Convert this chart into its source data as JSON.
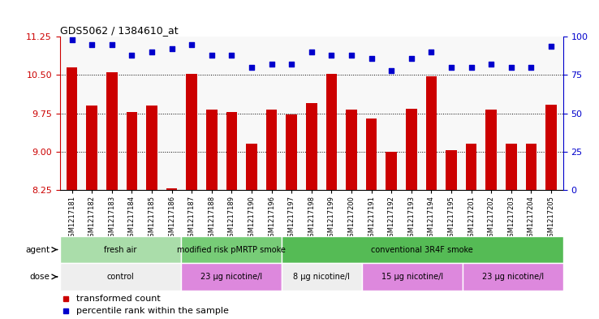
{
  "title": "GDS5062 / 1384610_at",
  "samples": [
    "GSM1217181",
    "GSM1217182",
    "GSM1217183",
    "GSM1217184",
    "GSM1217185",
    "GSM1217186",
    "GSM1217187",
    "GSM1217188",
    "GSM1217189",
    "GSM1217190",
    "GSM1217196",
    "GSM1217197",
    "GSM1217198",
    "GSM1217199",
    "GSM1217200",
    "GSM1217191",
    "GSM1217192",
    "GSM1217193",
    "GSM1217194",
    "GSM1217195",
    "GSM1217201",
    "GSM1217202",
    "GSM1217203",
    "GSM1217204",
    "GSM1217205"
  ],
  "bar_values": [
    10.65,
    9.9,
    10.55,
    9.77,
    9.9,
    8.28,
    10.52,
    9.82,
    9.77,
    9.15,
    9.82,
    9.73,
    9.95,
    10.52,
    9.82,
    9.65,
    9.0,
    9.83,
    10.48,
    9.02,
    9.15,
    9.82,
    9.15,
    9.15,
    9.92
  ],
  "dot_values": [
    98,
    95,
    95,
    88,
    90,
    92,
    95,
    88,
    88,
    80,
    82,
    82,
    90,
    88,
    88,
    86,
    78,
    86,
    90,
    80,
    80,
    82,
    80,
    80,
    94
  ],
  "ylim_left": [
    8.25,
    11.25
  ],
  "ylim_right": [
    0,
    100
  ],
  "yticks_left": [
    8.25,
    9.0,
    9.75,
    10.5,
    11.25
  ],
  "yticks_right": [
    0,
    25,
    50,
    75,
    100
  ],
  "bar_color": "#cc0000",
  "dot_color": "#0000cc",
  "agent_groups": [
    {
      "label": "fresh air",
      "start": 0,
      "end": 6,
      "color": "#aaddaa"
    },
    {
      "label": "modified risk pMRTP smoke",
      "start": 6,
      "end": 11,
      "color": "#77cc77"
    },
    {
      "label": "conventional 3R4F smoke",
      "start": 11,
      "end": 25,
      "color": "#55bb55"
    }
  ],
  "dose_groups": [
    {
      "label": "control",
      "start": 0,
      "end": 6,
      "color": "#eeeeee"
    },
    {
      "label": "23 μg nicotine/l",
      "start": 6,
      "end": 11,
      "color": "#dd88dd"
    },
    {
      "label": "8 μg nicotine/l",
      "start": 11,
      "end": 15,
      "color": "#eeeeee"
    },
    {
      "label": "15 μg nicotine/l",
      "start": 15,
      "end": 20,
      "color": "#dd88dd"
    },
    {
      "label": "23 μg nicotine/l",
      "start": 20,
      "end": 25,
      "color": "#dd88dd"
    }
  ],
  "legend_items": [
    {
      "label": "transformed count",
      "color": "#cc0000"
    },
    {
      "label": "percentile rank within the sample",
      "color": "#0000cc"
    }
  ],
  "chart_bg": "#f8f8f8",
  "grid_yticks": [
    9.0,
    9.75,
    10.5
  ]
}
